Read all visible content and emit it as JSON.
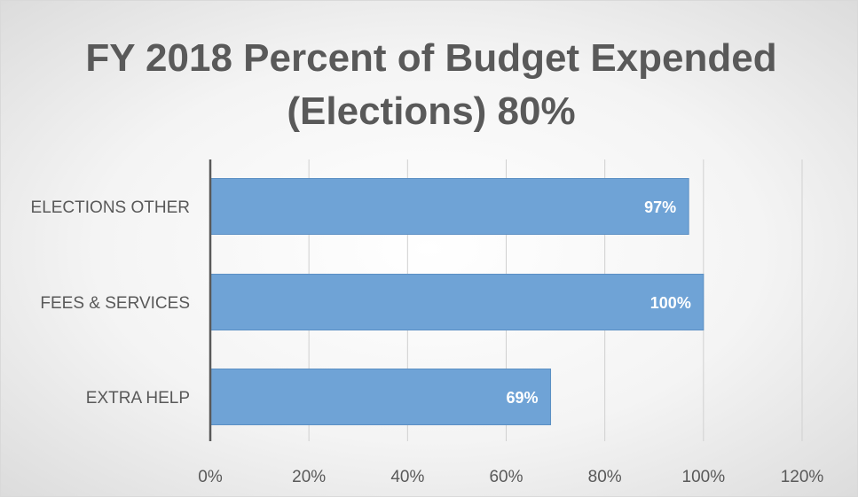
{
  "chart_data": {
    "type": "bar",
    "orientation": "horizontal",
    "title": "FY 2018 Percent of Budget Expended (Elections) 80%",
    "title_lines": [
      "FY 2018 Percent of Budget Expended",
      "(Elections) 80%"
    ],
    "categories": [
      "ELECTIONS OTHER",
      "FEES & SERVICES",
      "EXTRA HELP"
    ],
    "values": [
      97,
      100,
      69
    ],
    "data_labels": [
      "97%",
      "100%",
      "69%"
    ],
    "xlim": [
      0,
      120
    ],
    "xticks": [
      0,
      20,
      40,
      60,
      80,
      100,
      120
    ],
    "xtick_labels": [
      "0%",
      "20%",
      "40%",
      "60%",
      "80%",
      "100%",
      "120%"
    ],
    "xlabel": "",
    "ylabel": "",
    "grid": "vertical",
    "legend": "none",
    "colors": {
      "bar": "#6fa3d6",
      "bar_edge": "#5b8fc4",
      "grid": "#d0d0d0",
      "axis": "#595959",
      "text": "#595959"
    }
  }
}
